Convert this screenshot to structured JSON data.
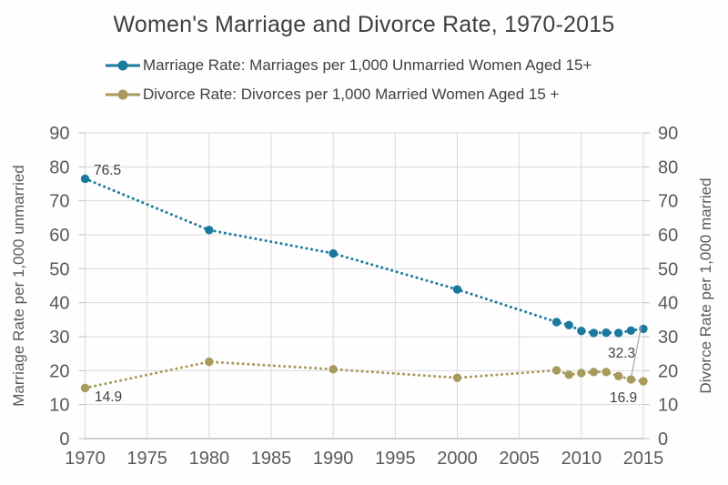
{
  "title": "Women's Marriage and Divorce Rate, 1970-2015",
  "legend": {
    "items": [
      {
        "label": "Marriage Rate: Marriages per 1,000 Unmarried Women Aged 15+",
        "color": "#1a7a9d"
      },
      {
        "label": "Divorce Rate: Divorces per 1,000 Married Women Aged 15 +",
        "color": "#a89a5b"
      }
    ]
  },
  "axes": {
    "left_title": "Marriage Rate per 1,000 unmarried",
    "right_title": "Divorce Rate per 1,000 married"
  },
  "chart_data": {
    "type": "line",
    "title": "Women's Marriage and Divorce Rate, 1970-2015",
    "line_style": "dotted-with-markers",
    "legend_position": "top",
    "grid": true,
    "x": [
      1970,
      1980,
      1990,
      2000,
      2008,
      2009,
      2010,
      2011,
      2012,
      2013,
      2014,
      2015
    ],
    "x_ticks": [
      1970,
      1975,
      1980,
      1985,
      1990,
      1995,
      2000,
      2005,
      2010,
      2015
    ],
    "xlim": [
      1970,
      2015
    ],
    "ylim": [
      0,
      90
    ],
    "y_tick_step": 10,
    "left_axis_label": "Marriage Rate per 1,000 unmarried",
    "right_axis_label": "Divorce Rate per 1,000 married",
    "series": [
      {
        "name": "Marriage Rate: Marriages per 1,000 Unmarried Women Aged 15+",
        "axis": "left",
        "color": "#1a7a9d",
        "values": [
          76.5,
          61.4,
          54.5,
          43.9,
          34.3,
          33.4,
          31.7,
          31.1,
          31.2,
          31.1,
          31.8,
          32.3
        ]
      },
      {
        "name": "Divorce Rate: Divorces per 1,000 Married Women Aged 15 +",
        "axis": "right",
        "color": "#a89a5b",
        "values": [
          14.9,
          22.6,
          20.4,
          17.9,
          20.1,
          18.8,
          19.3,
          19.6,
          19.6,
          18.4,
          17.4,
          16.9
        ]
      }
    ],
    "annotations": [
      {
        "series": 0,
        "x": 1970,
        "text": "76.5"
      },
      {
        "series": 1,
        "x": 1970,
        "text": "14.9"
      },
      {
        "series": 0,
        "x": 2015,
        "text": "32.3"
      },
      {
        "series": 1,
        "x": 2015,
        "text": "16.9"
      }
    ],
    "colors": {
      "gridline": "#d9d9d9",
      "axis_line": "#bfbfbf",
      "tick_label": "#595959",
      "data_label": "#404040",
      "leader_line": "#a6a6a6"
    }
  }
}
